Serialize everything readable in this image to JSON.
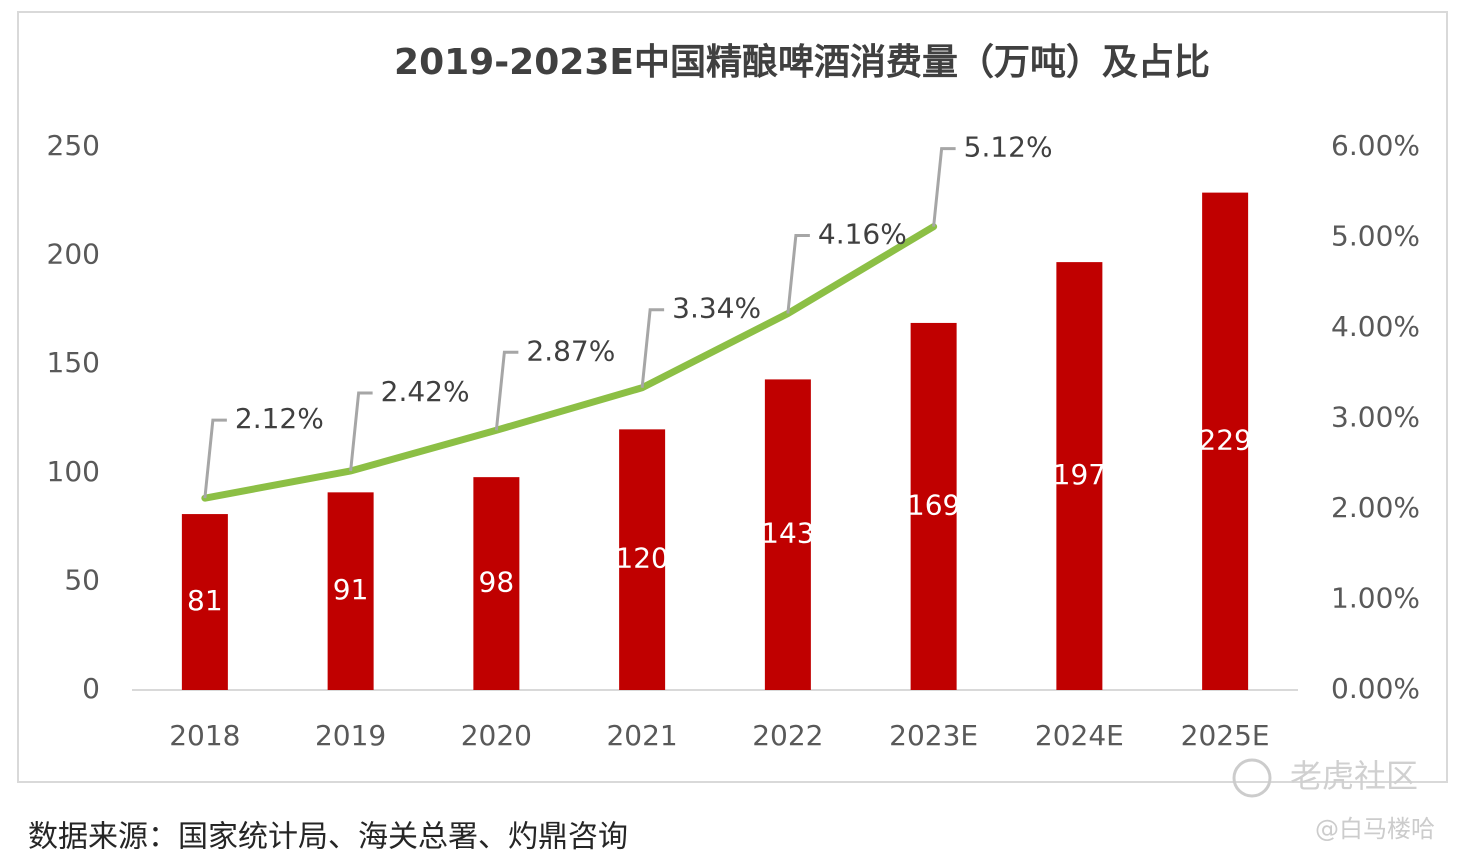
{
  "chart_data": {
    "type": "bar",
    "title": "2019-2023E中国精酿啤酒消费量（万吨）及占比",
    "categories": [
      "2018",
      "2019",
      "2020",
      "2021",
      "2022",
      "2023E",
      "2024E",
      "2025E"
    ],
    "series": [
      {
        "type": "bar",
        "color": "#c00000",
        "values": [
          81,
          91,
          98,
          120,
          143,
          169,
          197,
          229
        ]
      },
      {
        "type": "line",
        "axis": "y2",
        "color": "#8cbf45",
        "values": [
          2.12,
          2.42,
          2.87,
          3.34,
          4.16,
          5.12,
          null,
          null
        ],
        "value_labels": [
          "2.12%",
          "2.42%",
          "2.87%",
          "3.34%",
          "4.16%",
          "5.12%",
          null,
          null
        ]
      }
    ],
    "ylim": [
      0,
      250
    ],
    "yticks": [
      0,
      50,
      100,
      150,
      200,
      250
    ],
    "y2lim": [
      0,
      6
    ],
    "y2ticks": [
      {
        "value": 0,
        "label": "0.00%"
      },
      {
        "value": 1,
        "label": "1.00%"
      },
      {
        "value": 2,
        "label": "2.00%"
      },
      {
        "value": 3,
        "label": "3.00%"
      },
      {
        "value": 4,
        "label": "4.00%"
      },
      {
        "value": 5,
        "label": "5.00%"
      },
      {
        "value": 6,
        "label": "6.00%"
      }
    ],
    "grid": false
  },
  "source": "数据来源：国家统计局、海关总署、灼鼎咨询",
  "watermark": "老虎社区",
  "watermark_user": "@白马楼哈"
}
